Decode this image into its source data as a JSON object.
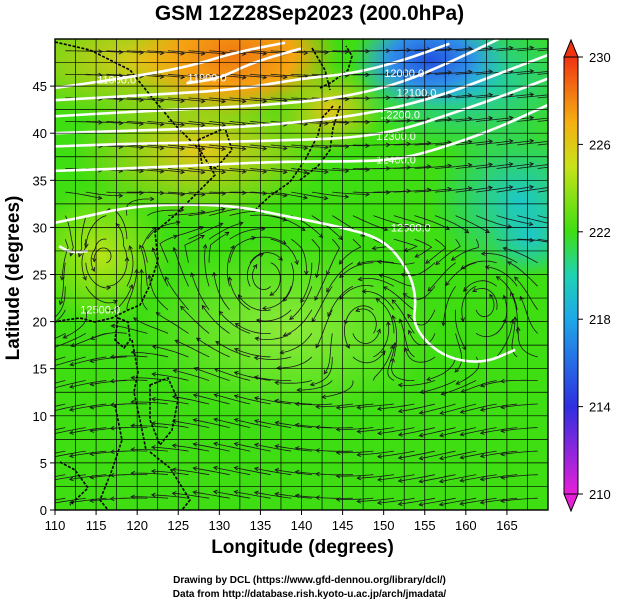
{
  "title": "GSM 12Z28Sep2023 (200.0hPa)",
  "xlabel": "Longitude (degrees)",
  "ylabel": "Latitude  (degrees)",
  "credit_line1": "Drawing by DCL (https://www.gfd-dennou.org/library/dcl/)",
  "credit_line2": "Data from http://database.rish.kyoto-u.ac.jp/arch/jmadata/",
  "map": {
    "lon_range": [
      110,
      170
    ],
    "lat_range": [
      0,
      50
    ],
    "lon_ticks": [
      110,
      115,
      120,
      125,
      130,
      135,
      140,
      145,
      150,
      155,
      160,
      165
    ],
    "lat_ticks": [
      0,
      5,
      10,
      15,
      20,
      25,
      30,
      35,
      40,
      45
    ],
    "grid_step_deg": 2.5,
    "height_contours": [
      {
        "label": "11900.0",
        "points": [
          [
            110,
            44.8
          ],
          [
            118,
            45.8
          ],
          [
            126,
            47
          ],
          [
            132,
            48.6
          ],
          [
            138,
            49.6
          ]
        ]
      },
      {
        "label": "11900.0",
        "points": [
          [
            126,
            45.3
          ],
          [
            130,
            45.8
          ],
          [
            134,
            47.5
          ],
          [
            140,
            49
          ]
        ]
      },
      {
        "label": "12000.0",
        "points": [
          [
            110,
            43.5
          ],
          [
            120,
            44
          ],
          [
            132,
            44.6
          ],
          [
            140,
            45.8
          ],
          [
            146,
            46.3
          ],
          [
            152,
            47.6
          ],
          [
            158,
            49.5
          ]
        ]
      },
      {
        "label": "12100.0",
        "points": [
          [
            110,
            41.8
          ],
          [
            120,
            42.3
          ],
          [
            132,
            42.8
          ],
          [
            140,
            43.3
          ],
          [
            146,
            44
          ],
          [
            152,
            45.3
          ],
          [
            158,
            47.5
          ],
          [
            164,
            50
          ]
        ]
      },
      {
        "label": "12200.0",
        "points": [
          [
            110,
            40
          ],
          [
            120,
            40.3
          ],
          [
            132,
            40.6
          ],
          [
            140,
            41.2
          ],
          [
            146,
            41.8
          ],
          [
            152,
            42.8
          ],
          [
            158,
            44.3
          ],
          [
            164,
            46.3
          ],
          [
            170,
            48.3
          ]
        ]
      },
      {
        "label": "12300.0",
        "points": [
          [
            110,
            38.6
          ],
          [
            120,
            38.9
          ],
          [
            132,
            39.1
          ],
          [
            140,
            39.3
          ],
          [
            146,
            39.5
          ],
          [
            152,
            40.3
          ],
          [
            158,
            42
          ],
          [
            164,
            43.8
          ],
          [
            170,
            45.8
          ]
        ]
      },
      {
        "label": "12400.0",
        "points": [
          [
            110,
            36
          ],
          [
            120,
            36.3
          ],
          [
            130,
            36.7
          ],
          [
            138,
            37
          ],
          [
            146,
            37
          ],
          [
            152,
            37.2
          ],
          [
            158,
            38.7
          ],
          [
            164,
            40.6
          ],
          [
            170,
            43
          ]
        ]
      },
      {
        "label": "12500.0",
        "points": [
          [
            110,
            30.5
          ],
          [
            114,
            31.2
          ],
          [
            118,
            32
          ],
          [
            124,
            32.5
          ],
          [
            132,
            32.3
          ],
          [
            138,
            31.2
          ],
          [
            144,
            30.2
          ],
          [
            150,
            28.8
          ],
          [
            153,
            25.5
          ],
          [
            154,
            22.5
          ],
          [
            153.5,
            19.5
          ],
          [
            157,
            16.3
          ],
          [
            162,
            15.5
          ],
          [
            166,
            17
          ]
        ]
      },
      {
        "label": "12500.0",
        "points": [
          [
            114,
            27.5
          ],
          [
            112,
            27.3
          ],
          [
            110.5,
            28
          ]
        ]
      }
    ],
    "contour_labels": [
      {
        "text": "11900.0",
        "lon": 117.5,
        "lat": 45.7
      },
      {
        "text": "11900.0",
        "lon": 128.5,
        "lat": 45.9
      },
      {
        "text": "12000.0",
        "lon": 152.5,
        "lat": 46.4
      },
      {
        "text": "12100.0",
        "lon": 154,
        "lat": 44.3
      },
      {
        "text": "12200.0",
        "lon": 152,
        "lat": 42
      },
      {
        "text": "12300.0",
        "lon": 151.5,
        "lat": 39.7
      },
      {
        "text": "12400.0",
        "lon": 151.5,
        "lat": 37.2
      },
      {
        "text": "12500.0",
        "lon": 153.3,
        "lat": 30
      },
      {
        "text": "12500.0",
        "lon": 115.5,
        "lat": 21.3
      }
    ]
  },
  "colorbar": {
    "min": 210,
    "max": 230,
    "ticks": [
      "230",
      "226",
      "222",
      "218",
      "214",
      "210"
    ]
  },
  "colors": {
    "field_green": "#3ede12",
    "field_light": "#6ee83a",
    "warm_orange": "#f59a12",
    "warm_yellow": "#d6e51a",
    "cold_blue": "#2f6fe6",
    "cold_cyan": "#1ec8d2"
  }
}
